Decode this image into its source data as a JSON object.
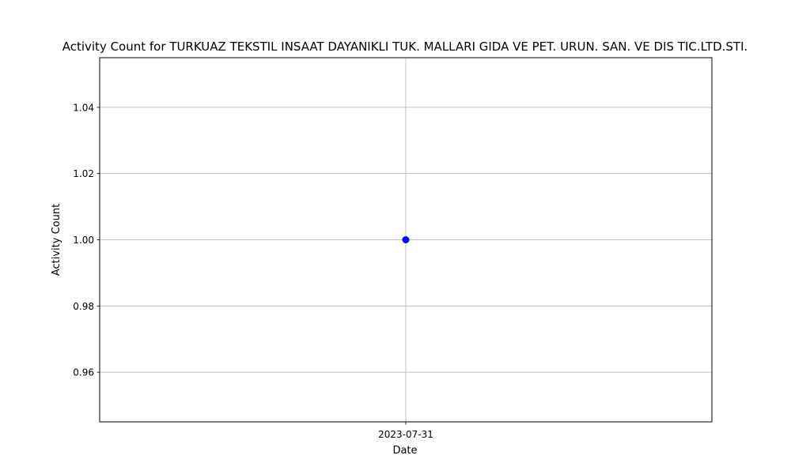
{
  "chart_data": {
    "type": "line",
    "title": "Activity Count for TURKUAZ TEKSTIL INSAAT DAYANIKLI TUK. MALLARI GIDA VE PET. URUN. SAN. VE DIS TIC.LTD.STI.",
    "xlabel": "Date",
    "ylabel": "Activity Count",
    "x": [
      "2023-07-31"
    ],
    "series": [
      {
        "values": [
          1
        ],
        "color": "#0000ff",
        "marker": "circle"
      }
    ],
    "ylim": [
      0.945,
      1.055
    ],
    "yticks": [
      0.96,
      0.98,
      1.0,
      1.02,
      1.04
    ],
    "ytick_labels": [
      "0.96",
      "0.98",
      "1.00",
      "1.02",
      "1.04"
    ],
    "xtick_labels": [
      "2023-07-31"
    ],
    "grid": true,
    "grid_color": "#b0b0b0"
  }
}
